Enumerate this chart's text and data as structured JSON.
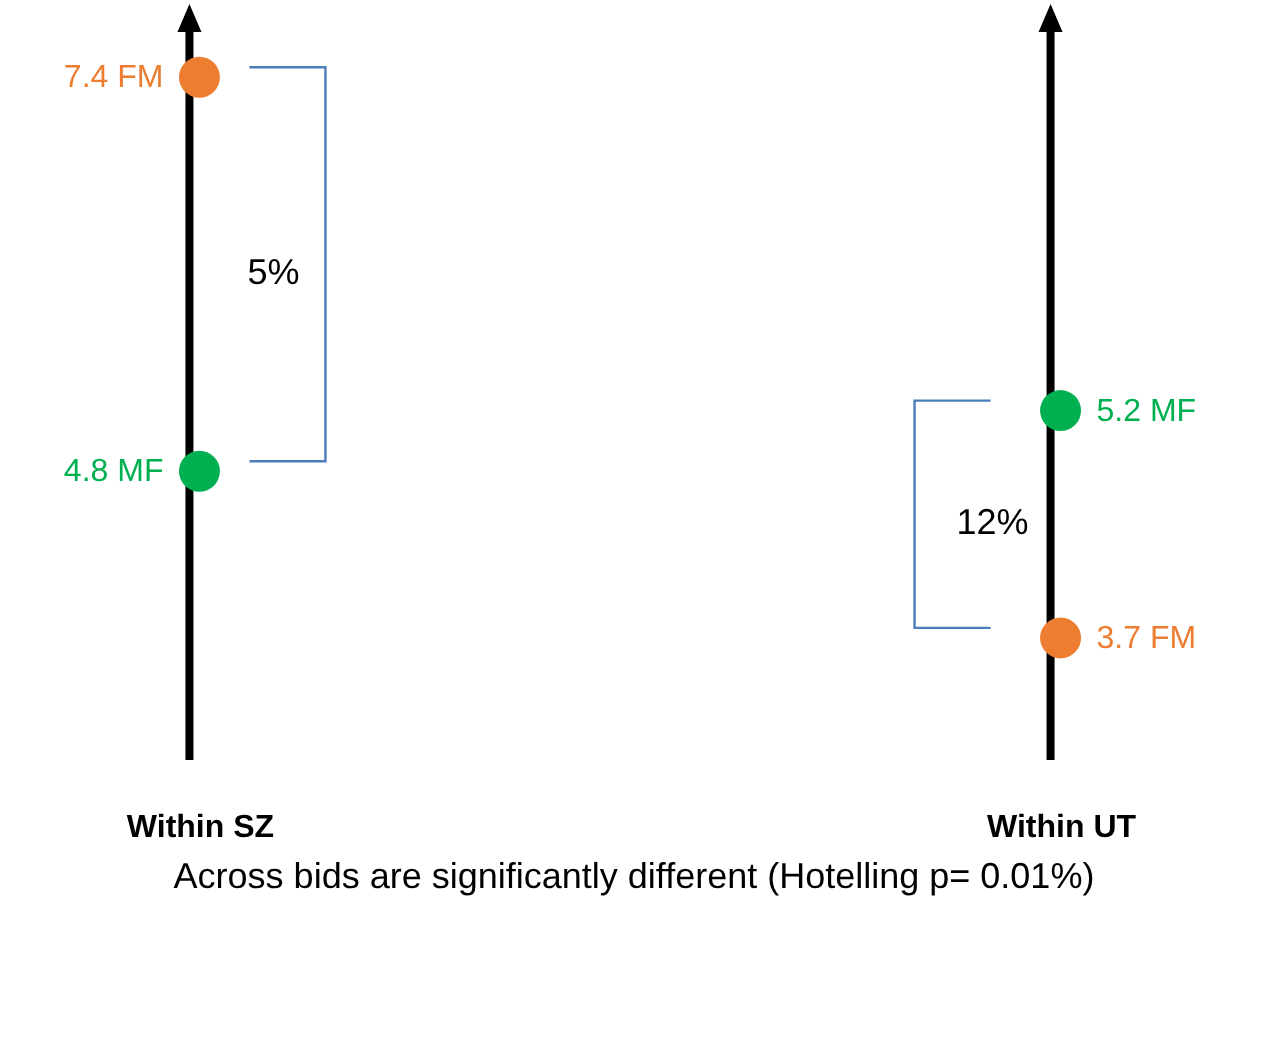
{
  "chart_data": {
    "type": "scatter",
    "categories": [
      "Within SZ",
      "Within UT"
    ],
    "series": [
      {
        "color": "#ed7d31",
        "values": [
          7.4,
          3.7
        ],
        "value_labels": [
          "7.4 FM",
          "3.7 FM"
        ]
      },
      {
        "color": "#00b050",
        "values": [
          4.8,
          5.2
        ],
        "value_labels": [
          "4.8 MF",
          "5.2 MF"
        ]
      }
    ],
    "tick_labels": "x",
    "marker": "circle",
    "annotations": [
      "5%",
      "12%",
      "Across bids are significantly different (Hotelling p= 0.01%)"
    ]
  }
}
